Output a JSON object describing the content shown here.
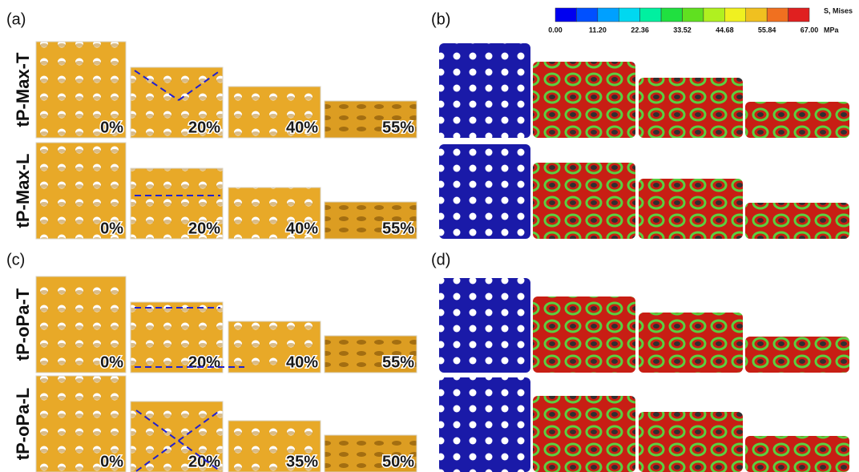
{
  "panels": [
    {
      "label": "(a)",
      "rows": [
        {
          "name": "tP-Max-T",
          "stages": [
            "0%",
            "20%",
            "40%",
            "55%"
          ]
        },
        {
          "name": "tP-Max-L",
          "stages": [
            "0%",
            "20%",
            "40%",
            "55%"
          ]
        }
      ]
    },
    {
      "label": "(b)"
    },
    {
      "label": "(c)",
      "rows": [
        {
          "name": "tP-oPa-T",
          "stages": [
            "0%",
            "20%",
            "40%",
            "55%"
          ]
        },
        {
          "name": "tP-oPa-L",
          "stages": [
            "0%",
            "20%",
            "35%",
            "50%"
          ]
        }
      ]
    },
    {
      "label": "(d)"
    }
  ],
  "colorbar": {
    "title": "S, Mises",
    "unit": "MPa",
    "tick_labels": [
      "0.00",
      "11.20",
      "22.36",
      "33.52",
      "44.68",
      "55.84",
      "67.00"
    ],
    "colors": [
      "#0000f0",
      "#0050ff",
      "#00a0ff",
      "#00d8f0",
      "#00f0a0",
      "#20e040",
      "#60e020",
      "#b0f020",
      "#f0f020",
      "#f0c020",
      "#f07020",
      "#e02020"
    ]
  }
}
